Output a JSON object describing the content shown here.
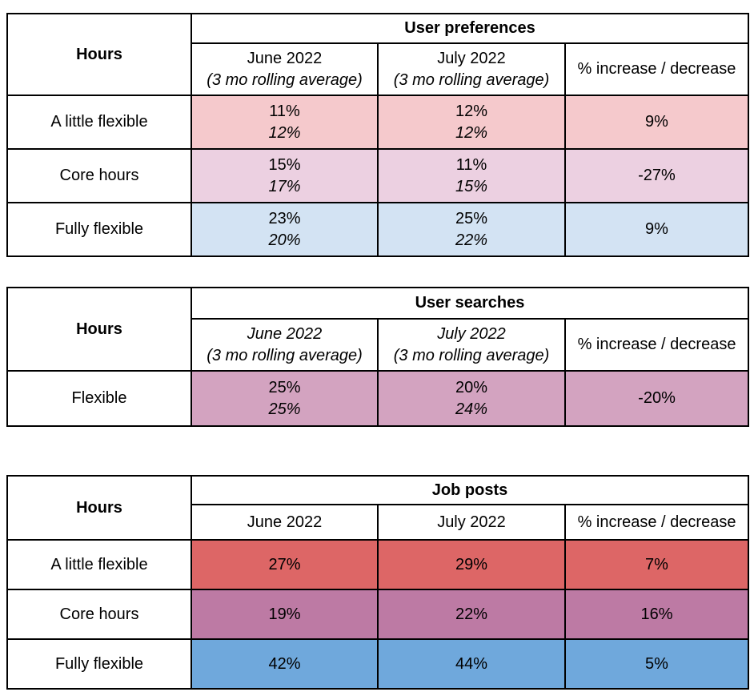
{
  "page": {
    "background": "#ffffff",
    "border_color": "#000000",
    "text_color": "#000000"
  },
  "tables": {
    "user_preferences": {
      "title": "User preferences",
      "hours_label": "Hours",
      "headers": {
        "june": {
          "line1": "June 2022",
          "line2": "(3 mo rolling average)"
        },
        "july": {
          "line1": "July 2022",
          "line2": "(3 mo rolling average)"
        },
        "change": "% increase / decrease"
      },
      "rows": [
        {
          "label": "A little flexible",
          "bg": "#f5c9cc",
          "june_line1": "11%",
          "june_line2": "12%",
          "july_line1": "12%",
          "july_line2": "12%",
          "change": "9%"
        },
        {
          "label": "Core hours",
          "bg": "#ecd0e1",
          "june_line1": "15%",
          "june_line2": "17%",
          "july_line1": "11%",
          "july_line2": "15%",
          "change": "-27%"
        },
        {
          "label": "Fully flexible",
          "bg": "#d3e3f3",
          "june_line1": "23%",
          "june_line2": "20%",
          "july_line1": "25%",
          "july_line2": "22%",
          "change": "9%"
        }
      ]
    },
    "user_searches": {
      "title": "User searches",
      "hours_label": "Hours",
      "headers": {
        "june": {
          "line1": "June 2022",
          "line2": "(3 mo rolling average)"
        },
        "july": {
          "line1": "July 2022",
          "line2": "(3 mo rolling average)"
        },
        "change": "% increase / decrease"
      },
      "rows": [
        {
          "label": "Flexible",
          "bg": "#d3a3c0",
          "june_line1": "25%",
          "june_line2": "25%",
          "july_line1": "20%",
          "july_line2": "24%",
          "change": "-20%"
        }
      ]
    },
    "job_posts": {
      "title": "Job posts",
      "hours_label": "Hours",
      "headers": {
        "june": "June 2022",
        "july": "July 2022",
        "change": "% increase / decrease"
      },
      "rows": [
        {
          "label": "A little flexible",
          "bg": "#dd6666",
          "june": "27%",
          "july": "29%",
          "change": "7%"
        },
        {
          "label": "Core hours",
          "bg": "#bd7aa4",
          "june": "19%",
          "july": "22%",
          "change": "16%"
        },
        {
          "label": "Fully flexible",
          "bg": "#6fa8dc",
          "june": "42%",
          "july": "44%",
          "change": "5%"
        }
      ]
    }
  }
}
